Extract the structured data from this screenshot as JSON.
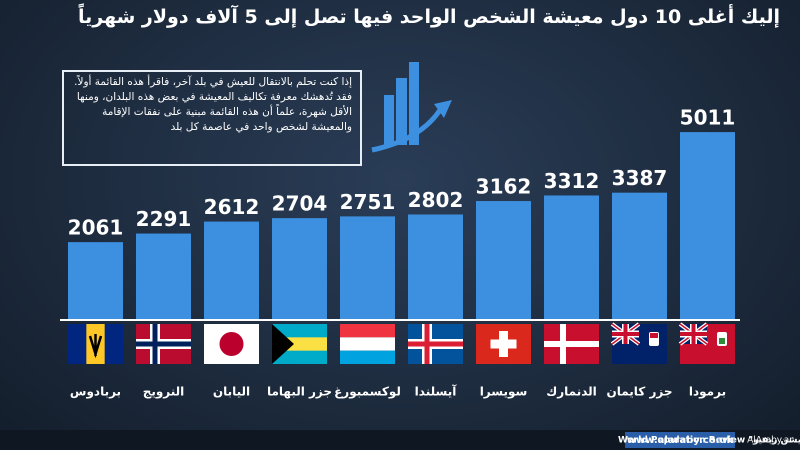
{
  "chart_data": {
    "type": "bar",
    "title": "إليك أغلى 10 دول معيشة الشخص الواحد فيها تصل إلى 5 آلاف دولار شهرياً",
    "intro": "إذا كنت تحلم بالانتقال للعيش في بلد آخر، فاقرأ هذه القائمة أولاً. فقد تُدهشك معرفة تكاليف المعيشة في بعض هذه البلدان، ومنها الأقل شهرة، علماً أن هذه القائمة مبنية على نفقات الإقامة والمعيشة لشخص واحد في عاصمة كل بلد",
    "categories": [
      "بربادوس",
      "النرويج",
      "اليابان",
      "جزر البهاما",
      "لوكسمبورغ",
      "آيسلندا",
      "سويسرا",
      "الدنمارك",
      "جزر كايمان",
      "برمودا"
    ],
    "values": [
      2061,
      2291,
      2612,
      2704,
      2751,
      2802,
      3162,
      3312,
      3387,
      5011
    ],
    "color": "#3d8fe0",
    "source": "المصدر: \"ويلثي غوريلا\" Wealthy Gorilla، و\"نوماد ليست\" Nomad List، و\"وورلد بوبيولايشن ريفيو\" World Population Review",
    "website": "www.alaraby.co.uk",
    "social": "AlAraby.ar"
  }
}
